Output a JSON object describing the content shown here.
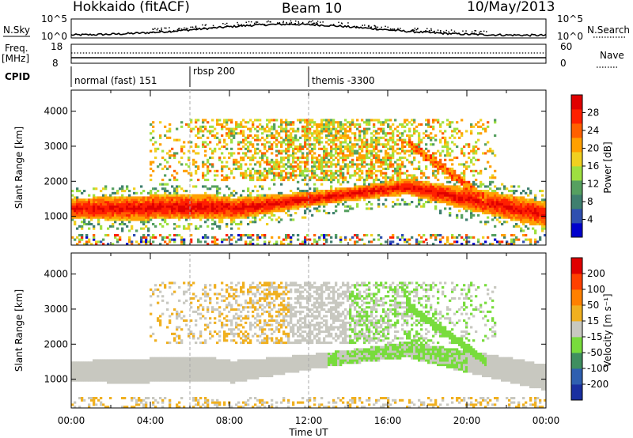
{
  "header": {
    "station": "Hokkaido (fitACF)",
    "beam": "Beam 10",
    "date": "10/May/2013"
  },
  "panels": {
    "nsky_label": "N.Sky",
    "nsky_ticks": [
      "10^5",
      "10^0"
    ],
    "nsearch_label": "N.Search",
    "nsearch_ticks": [
      "10^5",
      "10^0"
    ],
    "freq_label": "Freq.",
    "freq_unit": "[MHz]",
    "freq_ticks": [
      "18",
      "8"
    ],
    "nave_label": "Nave",
    "nave_ticks": [
      "60",
      "0"
    ],
    "cpid_label": "CPID",
    "cpid_segments": [
      {
        "name": "normal (fast) 151",
        "start": "00:00"
      },
      {
        "name": "rbsp 200",
        "start": "06:00"
      },
      {
        "name": "themis -3300",
        "start": "12:00"
      }
    ]
  },
  "chart_data": [
    {
      "type": "heatmap",
      "name": "power",
      "ylabel": "Slant Range [km]",
      "xlabel": "",
      "ylim": [
        180,
        4600
      ],
      "yticks": [
        "1000",
        "2000",
        "3000",
        "4000"
      ],
      "xlim": [
        "00:00",
        "24:00"
      ],
      "colorbar": {
        "label": "Power [dB]",
        "ticks": [
          "4",
          "8",
          "12",
          "16",
          "20",
          "24",
          "28"
        ],
        "colors": [
          "#0000cc",
          "#2f4fb0",
          "#3f7f6f",
          "#56a060",
          "#9ee040",
          "#f0d020",
          "#ffa000",
          "#ff6000",
          "#ff2000",
          "#e00000"
        ]
      },
      "features": [
        {
          "desc": "main band",
          "range_km_at_00h": 1150,
          "range_km_at_17h": 1850,
          "range_km_at_24h": 1050
        },
        {
          "desc": "upper scatter",
          "range_km": [
            2000,
            3800
          ],
          "time": [
            "04:00",
            "22:00"
          ]
        }
      ]
    },
    {
      "type": "heatmap",
      "name": "velocity",
      "ylabel": "Slant Range [km]",
      "xlabel": "Time UT",
      "ylim": [
        180,
        4600
      ],
      "yticks": [
        "1000",
        "2000",
        "3000",
        "4000"
      ],
      "xticks": [
        "00:00",
        "04:00",
        "08:00",
        "12:00",
        "16:00",
        "20:00",
        "00:00"
      ],
      "colorbar": {
        "label": "Velocity [m s⁻¹]",
        "ticks": [
          "200",
          "100",
          "50",
          "15",
          "-15",
          "-50",
          "-100",
          "-200"
        ],
        "colors": [
          "#1a2fa0",
          "#2f5fb0",
          "#3f8f60",
          "#78dc3c",
          "#c8c8c0",
          "#f0b020",
          "#ff8000",
          "#ff4000",
          "#e00000"
        ]
      }
    }
  ]
}
